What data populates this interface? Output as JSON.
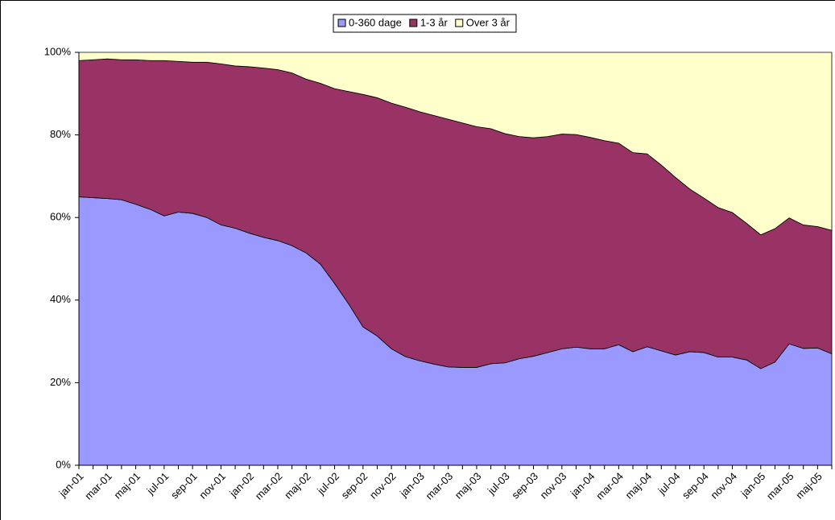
{
  "chart_data": {
    "type": "stacked_area",
    "categories": [
      "jan-01",
      null,
      "mar-01",
      null,
      "maj-01",
      null,
      "jul-01",
      null,
      "sep-01",
      null,
      "nov-01",
      null,
      "jan-02",
      null,
      "mar-02",
      null,
      "maj-02",
      null,
      "jul-02",
      null,
      "sep-02",
      null,
      "nov-02",
      null,
      "jan-03",
      null,
      "mar-03",
      null,
      "maj-03",
      null,
      "jul-03",
      null,
      "sep-03",
      null,
      "nov-03",
      null,
      "jan-04",
      null,
      "mar-04",
      null,
      "maj-04",
      null,
      "jul-04",
      null,
      "sep-04",
      null,
      "nov-04",
      null,
      "jan-05",
      null,
      "mar-05",
      null,
      "maj-05",
      null
    ],
    "series": [
      {
        "name": "0-360 dage",
        "color": "#9999ff",
        "values": [
          65,
          64.8,
          64.6,
          64.3,
          63.2,
          62,
          60.4,
          61.3,
          61,
          60,
          58.2,
          57.4,
          56.2,
          55.2,
          54.4,
          53.2,
          51.4,
          48.7,
          44,
          39,
          33.5,
          31.3,
          28.2,
          26.3,
          25.3,
          24.5,
          23.8,
          23.7,
          23.7,
          24.6,
          24.8,
          25.8,
          26.4,
          27.3,
          28.2,
          28.6,
          28.2,
          28.2,
          29.2,
          27.5,
          28.7,
          27.7,
          26.7,
          27.5,
          27.3,
          26.2,
          26.2,
          25.5,
          23.4,
          25,
          29.4,
          28.3,
          28.4,
          27
        ]
      },
      {
        "name": "1-3 år",
        "color": "#993366",
        "values": [
          33,
          33.4,
          33.8,
          33.9,
          35,
          36,
          37.6,
          36.5,
          36.6,
          37.6,
          39,
          39.3,
          40.3,
          41,
          41.4,
          41.8,
          42.1,
          43.8,
          47.2,
          51.5,
          56.3,
          57.7,
          59.5,
          60.4,
          60.3,
          60.2,
          60,
          59.2,
          58.3,
          56.9,
          55.5,
          53.8,
          52.9,
          52.3,
          52,
          51.5,
          51.2,
          50.4,
          48.8,
          48.2,
          46.7,
          45,
          43,
          39.4,
          37.4,
          36.2,
          35,
          33.1,
          32.4,
          32.3,
          30.5,
          29.9,
          29.4,
          29.9
        ]
      },
      {
        "name": "Over 3 år",
        "color": "#ffffcc",
        "values": [
          2,
          1.8,
          1.6,
          1.8,
          1.8,
          2,
          2,
          2.2,
          2.4,
          2.4,
          2.8,
          3.3,
          3.5,
          3.8,
          4.2,
          5,
          6.5,
          7.5,
          8.8,
          9.5,
          10.2,
          11,
          12.3,
          13.3,
          14.4,
          15.3,
          16.2,
          17.1,
          18,
          18.5,
          19.7,
          20.4,
          20.7,
          20.4,
          19.8,
          19.9,
          20.6,
          21.4,
          22,
          24.3,
          24.6,
          27.3,
          30.3,
          33.1,
          35.3,
          37.6,
          38.8,
          41.4,
          44.2,
          42.7,
          40.1,
          41.8,
          42.2,
          43.1
        ]
      }
    ],
    "ylim": [
      0,
      100
    ],
    "yticks": [
      {
        "value": 0,
        "label": "0%"
      },
      {
        "value": 20,
        "label": "20%"
      },
      {
        "value": 40,
        "label": "40%"
      },
      {
        "value": 60,
        "label": "60%"
      },
      {
        "value": 80,
        "label": "80%"
      },
      {
        "value": 100,
        "label": "100%"
      }
    ],
    "legend": "top"
  }
}
